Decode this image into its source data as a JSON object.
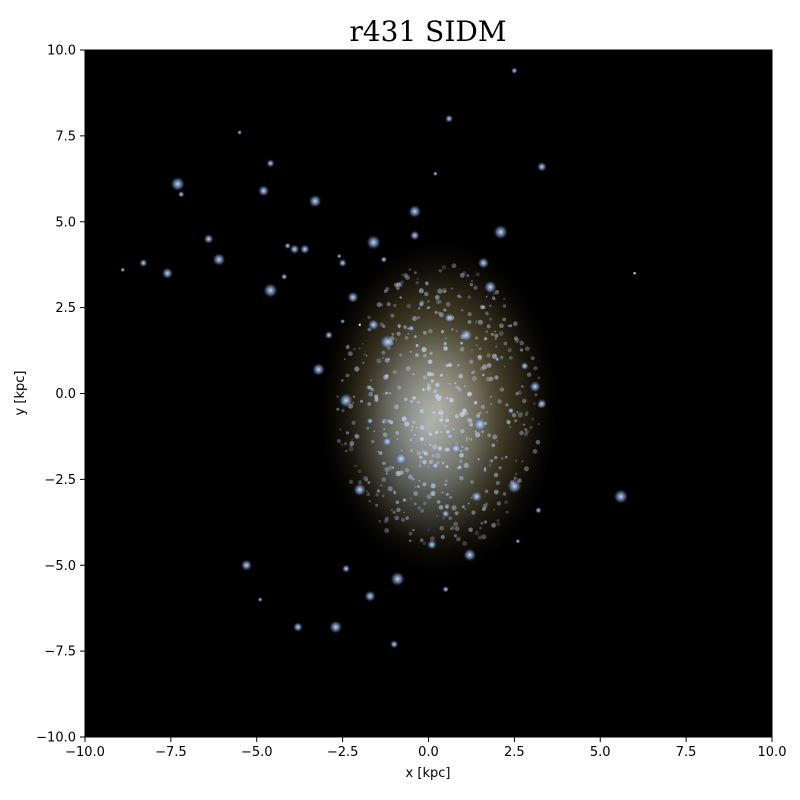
{
  "chart_data": {
    "type": "heatmap",
    "title": "r431 SIDM",
    "xlabel": "x [kpc]",
    "ylabel": "y [kpc]",
    "xlim": [
      -10.0,
      10.0
    ],
    "ylim": [
      -10.0,
      10.0
    ],
    "x_ticks": [
      -10.0,
      -7.5,
      -5.0,
      -2.5,
      0.0,
      2.5,
      5.0,
      7.5,
      10.0
    ],
    "y_ticks": [
      -10.0,
      -7.5,
      -5.0,
      -2.5,
      0.0,
      2.5,
      5.0,
      7.5,
      10.0
    ],
    "x_tick_labels": [
      "−10.0",
      "−7.5",
      "−5.0",
      "−2.5",
      "0.0",
      "2.5",
      "5.0",
      "7.5",
      "10.0"
    ],
    "y_tick_labels": [
      "−10.0",
      "−7.5",
      "−5.0",
      "−2.5",
      "0.0",
      "2.5",
      "5.0",
      "7.5",
      "10.0"
    ],
    "grid": false,
    "background_color": "#000000",
    "stellar_color": "#8a7f57",
    "gas_color": "#8fb0e8",
    "galaxy_center": [
      0.3,
      -0.4
    ],
    "stellar_disk_radius": [
      3.0,
      4.2
    ],
    "gas_clumps": [
      [
        -8.9,
        3.6
      ],
      [
        -8.3,
        3.8
      ],
      [
        -7.6,
        3.5
      ],
      [
        -7.3,
        6.1
      ],
      [
        -7.2,
        5.8
      ],
      [
        -6.4,
        4.5
      ],
      [
        -6.1,
        3.9
      ],
      [
        -5.5,
        7.6
      ],
      [
        -4.6,
        6.7
      ],
      [
        -4.8,
        5.9
      ],
      [
        -4.6,
        3.0
      ],
      [
        -4.2,
        3.4
      ],
      [
        -3.9,
        4.2
      ],
      [
        -3.3,
        5.6
      ],
      [
        -2.6,
        4.0
      ],
      [
        -2.5,
        3.8
      ],
      [
        -2.2,
        2.8
      ],
      [
        -1.6,
        4.4
      ],
      [
        -1.3,
        3.9
      ],
      [
        -0.4,
        4.6
      ],
      [
        -0.4,
        5.3
      ],
      [
        0.2,
        6.4
      ],
      [
        0.6,
        8.0
      ],
      [
        1.6,
        3.8
      ],
      [
        2.1,
        4.7
      ],
      [
        2.5,
        9.4
      ],
      [
        3.3,
        6.6
      ],
      [
        -3.2,
        0.7
      ],
      [
        -2.5,
        2.1
      ],
      [
        -2.9,
        1.7
      ],
      [
        -1.6,
        2.0
      ],
      [
        -1.2,
        1.5
      ],
      [
        -0.5,
        1.9
      ],
      [
        0.6,
        2.2
      ],
      [
        1.1,
        1.7
      ],
      [
        2.0,
        1.0
      ],
      [
        2.8,
        0.8
      ],
      [
        3.1,
        0.2
      ],
      [
        -2.4,
        -0.2
      ],
      [
        -1.7,
        -0.8
      ],
      [
        -1.2,
        -1.4
      ],
      [
        -0.8,
        -1.9
      ],
      [
        -0.4,
        -1.2
      ],
      [
        0.2,
        -2.1
      ],
      [
        0.8,
        -1.6
      ],
      [
        1.5,
        -0.9
      ],
      [
        2.4,
        -0.5
      ],
      [
        3.3,
        -0.3
      ],
      [
        -2.0,
        -2.8
      ],
      [
        -0.7,
        -3.1
      ],
      [
        0.5,
        -3.5
      ],
      [
        1.4,
        -3.0
      ],
      [
        2.5,
        -2.7
      ],
      [
        3.2,
        -3.4
      ],
      [
        0.1,
        -4.4
      ],
      [
        1.2,
        -4.7
      ],
      [
        2.6,
        -4.3
      ],
      [
        -2.4,
        -5.1
      ],
      [
        -1.7,
        -5.9
      ],
      [
        -0.9,
        -5.4
      ],
      [
        0.5,
        -5.7
      ],
      [
        -3.8,
        -6.8
      ],
      [
        -2.7,
        -6.8
      ],
      [
        -4.9,
        -6.0
      ],
      [
        -1.0,
        -7.3
      ],
      [
        -5.3,
        -5.0
      ],
      [
        5.6,
        -3.0
      ],
      [
        -4.1,
        4.3
      ],
      [
        -3.6,
        4.2
      ],
      [
        1.8,
        3.1
      ]
    ],
    "bright_stars": [
      [
        6.0,
        3.5
      ],
      [
        -2.0,
        2.0
      ]
    ]
  }
}
